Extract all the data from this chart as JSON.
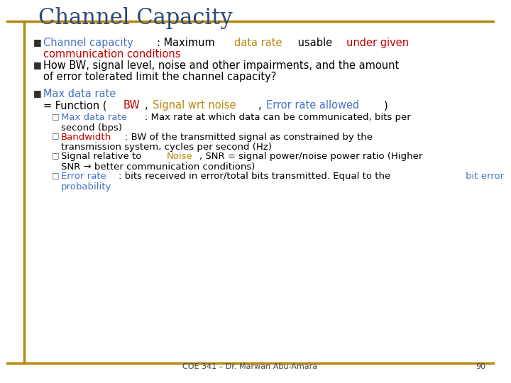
{
  "title": "Channel Capacity",
  "title_color": "#2E4A7A",
  "bg_color": "#FFFFFF",
  "border_color": "#B8860B",
  "footer_text": "COE 341 – Dr. Marwan Abu-Amara",
  "footer_page": "90",
  "bullet_color": "#2E2E2E",
  "bullet1": {
    "parts": [
      {
        "text": "Channel capacity",
        "color": "#4472C4"
      },
      {
        "text": ": Maximum ",
        "color": "#000000"
      },
      {
        "text": "data rate",
        "color": "#B8860B"
      },
      {
        "text": " usable ",
        "color": "#000000"
      },
      {
        "text": "under given\ncommunication conditions",
        "color": "#C00000"
      }
    ]
  },
  "bullet2": {
    "parts": [
      {
        "text": "How BW, signal level, noise and other impairments, and the amount\nof error tolerated limit the channel capacity?",
        "color": "#000000"
      }
    ]
  },
  "bullet3_header": {
    "parts": [
      {
        "text": "Max data rate",
        "color": "#4472C4"
      }
    ]
  },
  "bullet3_function": {
    "parts": [
      {
        "text": "= Function (",
        "color": "#000000"
      },
      {
        "text": "BW",
        "color": "#C00000"
      },
      {
        "text": ", ",
        "color": "#000000"
      },
      {
        "text": "Signal wrt noise",
        "color": "#B8860B"
      },
      {
        "text": ", ",
        "color": "#000000"
      },
      {
        "text": "Error rate allowed",
        "color": "#4472C4"
      },
      {
        "text": ")",
        "color": "#000000"
      }
    ]
  },
  "sub_bullet1": {
    "parts": [
      {
        "text": "Max data rate",
        "color": "#4472C4"
      },
      {
        "text": ": Max rate at which data can be communicated, bits per\nsecond (bps)",
        "color": "#000000"
      }
    ]
  },
  "sub_bullet2": {
    "parts": [
      {
        "text": "Bandwidth",
        "color": "#C00000"
      },
      {
        "text": ": BW of the transmitted signal as constrained by the\ntransmission system, cycles per second (Hz)",
        "color": "#000000"
      }
    ]
  },
  "sub_bullet3": {
    "parts": [
      {
        "text": "Signal relative to ",
        "color": "#000000"
      },
      {
        "text": "Noise",
        "color": "#B8860B"
      },
      {
        "text": ", SNR = signal power/noise power ratio (Higher\nSNR → better communication conditions)",
        "color": "#000000"
      }
    ]
  },
  "sub_bullet4": {
    "parts": [
      {
        "text": "Error rate",
        "color": "#4472C4"
      },
      {
        "text": ": bits received in error/total bits transmitted. Equal to the ",
        "color": "#000000"
      },
      {
        "text": "bit error\nprobability",
        "color": "#4472C4"
      }
    ]
  }
}
